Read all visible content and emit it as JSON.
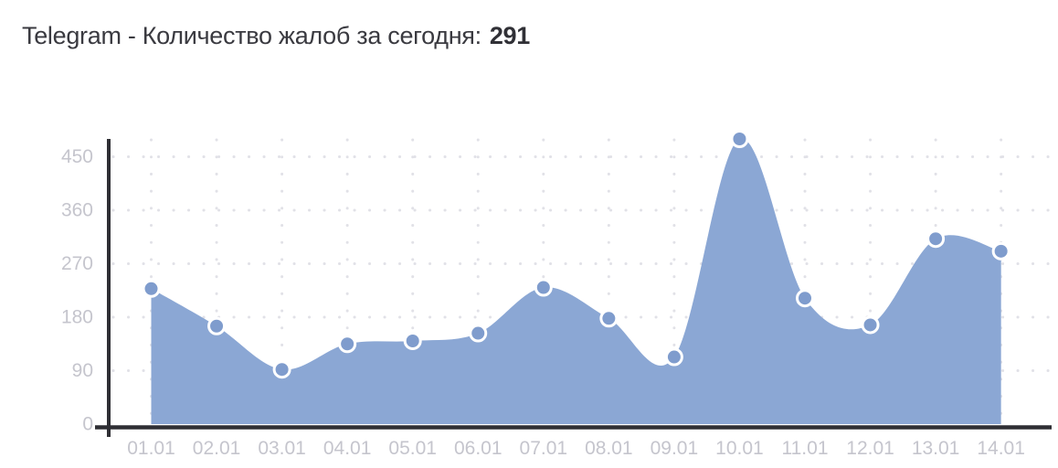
{
  "title": {
    "label": "Telegram - Количество жалоб за сегодня:",
    "count": "291"
  },
  "chart_data": {
    "type": "area",
    "title": "Telegram - Количество жалоб за сегодня: 291",
    "x": [
      "01.01",
      "02.01",
      "03.01",
      "04.01",
      "05.01",
      "06.01",
      "07.01",
      "08.01",
      "09.01",
      "10.01",
      "11.01",
      "12.01",
      "13.01",
      "14.01"
    ],
    "values": [
      228,
      165,
      92,
      135,
      140,
      153,
      230,
      178,
      113,
      480,
      212,
      167,
      312,
      291
    ],
    "xlabel": "",
    "ylabel": "",
    "yticks": [
      0,
      90,
      180,
      270,
      360,
      450
    ],
    "ylim": [
      0,
      480
    ],
    "grid": "dotted",
    "legend": "none",
    "smooth": true,
    "colors": {
      "area_fill": "#8BA7D4",
      "marker_fill": "#7F9CCD",
      "marker_ring": "#FFFFFF",
      "axis_line": "#2F2F34",
      "grid_dot": "#E1E1E7",
      "tick_label": "#C5C5CD",
      "title_text": "#3A3A40"
    }
  }
}
